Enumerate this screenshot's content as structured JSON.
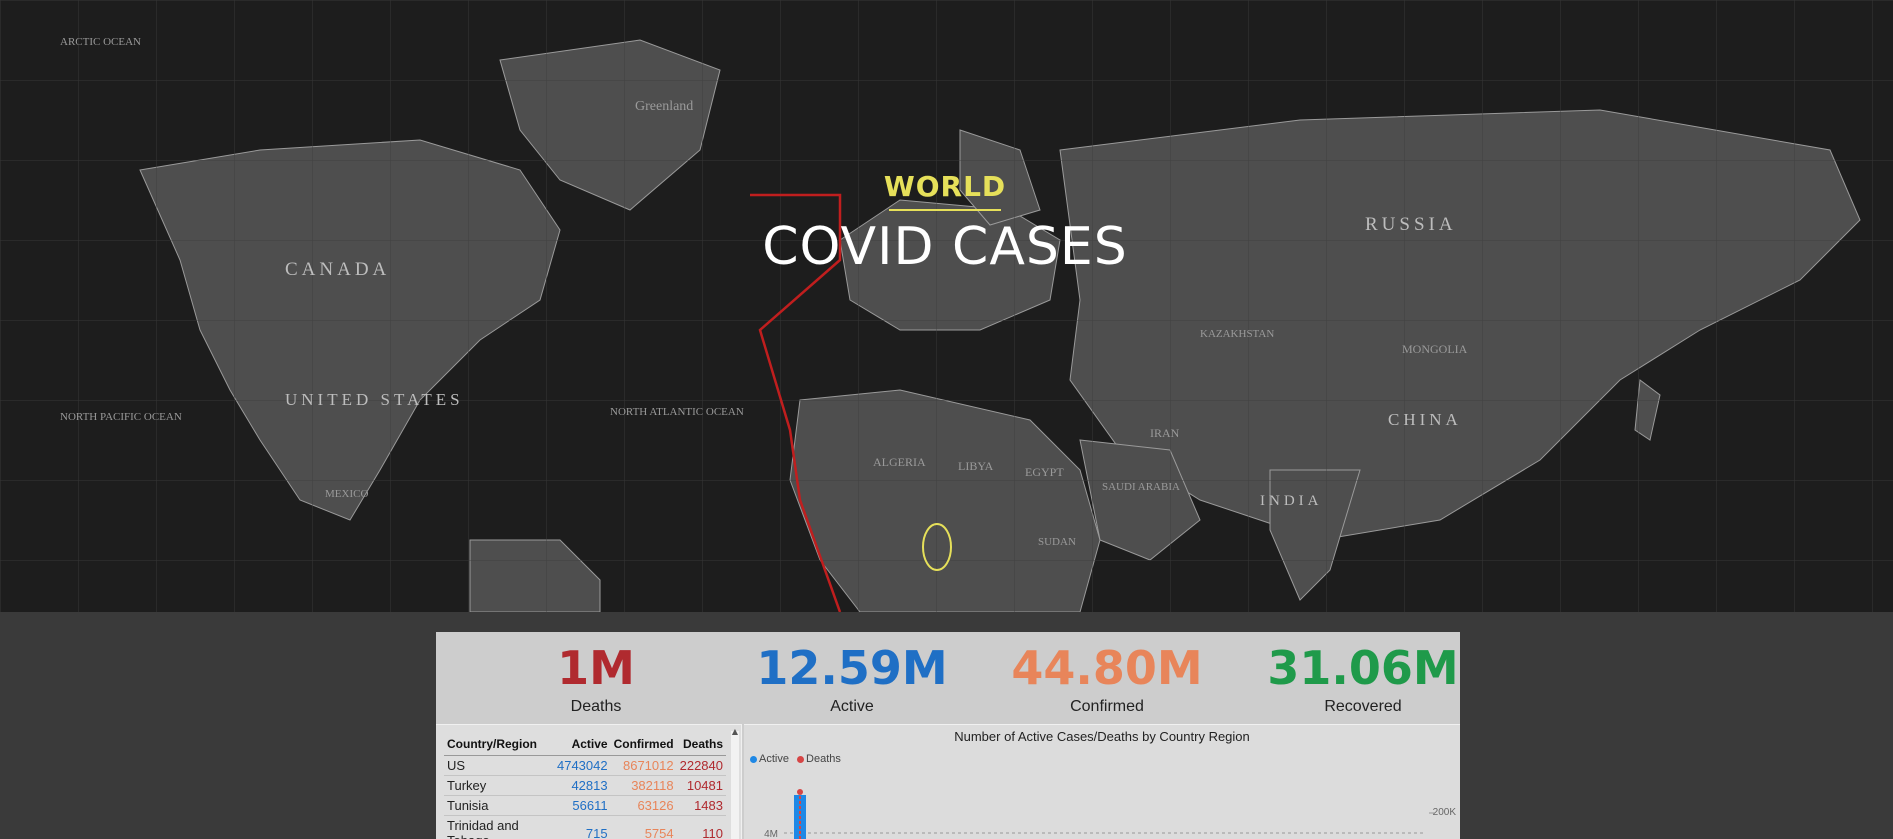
{
  "hero": {
    "kicker": "WORLD",
    "title": "COVID CASES"
  },
  "map_labels": {
    "canada": "CANADA",
    "united_states": "UNITED STATES",
    "russia": "RUSSIA",
    "china": "CHINA",
    "india": "INDIA",
    "greenland": "Greenland",
    "algeria": "ALGERIA",
    "libya": "LIBYA",
    "egypt": "EGYPT",
    "iran": "IRAN",
    "mongolia": "MONGOLIA",
    "kazakhstan": "KAZAKHSTAN",
    "mexico": "MEXICO",
    "north_atlantic": "NORTH ATLANTIC OCEAN",
    "north_pacific": "NORTH PACIFIC OCEAN",
    "arctic": "ARCTIC OCEAN",
    "sudan": "SUDAN",
    "saudi": "SAUDI ARABIA"
  },
  "kpis": [
    {
      "value": "1M",
      "label": "Deaths",
      "color": "#b02a2f"
    },
    {
      "value": "12.59M",
      "label": "Active",
      "color": "#1f6fc5"
    },
    {
      "value": "44.80M",
      "label": "Confirmed",
      "color": "#e8855a"
    },
    {
      "value": "31.06M",
      "label": "Recovered",
      "color": "#1f9a4a"
    }
  ],
  "table": {
    "headers": [
      "Country/Region",
      "Active",
      "Confirmed",
      "Deaths"
    ],
    "rows": [
      {
        "country": "US",
        "active": "4743042",
        "confirmed": "8671012",
        "deaths": "222840"
      },
      {
        "country": "Turkey",
        "active": "42813",
        "confirmed": "382118",
        "deaths": "10481"
      },
      {
        "country": "Tunisia",
        "active": "56611",
        "confirmed": "63126",
        "deaths": "1483"
      },
      {
        "country": "Trinidad and Tobago",
        "active": "715",
        "confirmed": "5754",
        "deaths": "110"
      }
    ]
  },
  "chart": {
    "title": "Number of Active Cases/Deaths by Country Region",
    "legend": [
      {
        "name": "Active",
        "color": "#1f88e5"
      },
      {
        "name": "Deaths",
        "color": "#d64545"
      }
    ],
    "y_tick_left": "4M",
    "y_tick_right": "200K"
  }
}
